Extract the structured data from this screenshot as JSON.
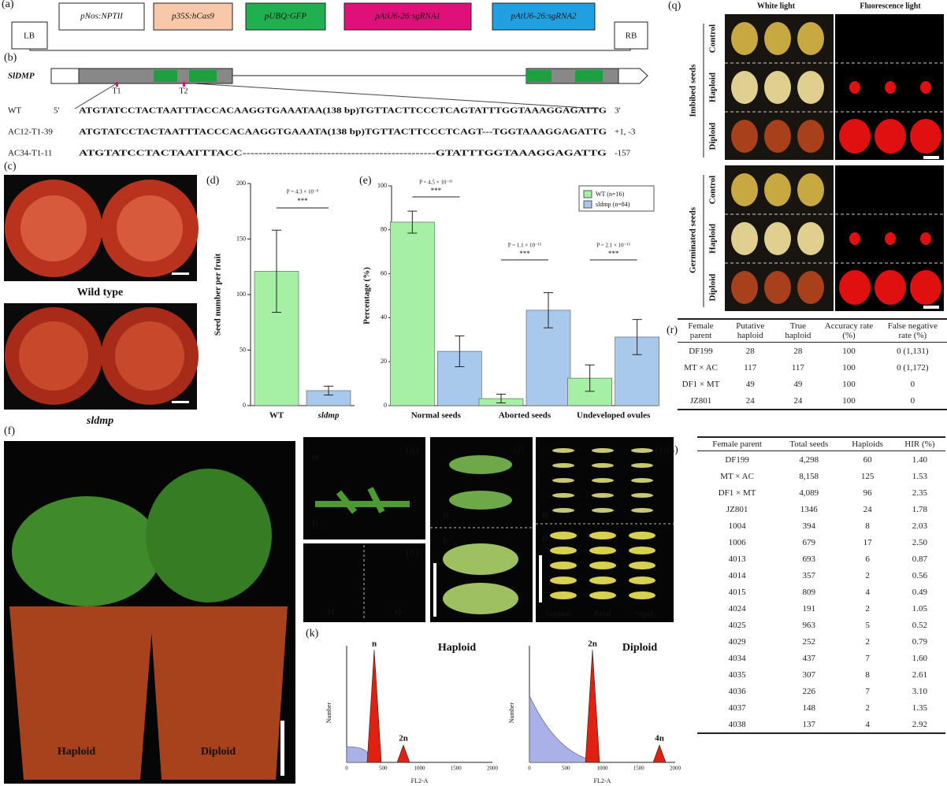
{
  "panel_labels": [
    "(a)",
    "(b)",
    "(c)",
    "(d)",
    "(e)",
    "(f)",
    "(g)",
    "(h)",
    "(i)",
    "(j)",
    "(k)",
    "(q)",
    "(r)",
    "(s)"
  ],
  "construct": {
    "left_border": "LB",
    "right_border": "RB",
    "elements": [
      {
        "text": "pNos:NPTII",
        "color": "#ffffff"
      },
      {
        "text": "p35S:hCas9",
        "color": "#f8c8a8"
      },
      {
        "text": "pUBQ:GFP",
        "color": "#20b050"
      },
      {
        "text": "pAtU6-26:sgRNA1",
        "color": "#e0107a"
      },
      {
        "text": "pAtU6-26:sgRNA2",
        "color": "#20a0e0"
      }
    ]
  },
  "gene": {
    "name": "SlDMP",
    "targets": [
      "T1",
      "T2"
    ]
  },
  "sequences": [
    {
      "name": "WT",
      "prefix": "5'",
      "seq": "ATGTATCCTACTAATTTACCACAAGGTGAAATAA(138 bp)TGTTACTTCCCTCAGTATTTGGTAAAGGAGATTG",
      "suffix": "3'"
    },
    {
      "name": "AC12-T1-39",
      "prefix": "",
      "seq": "ATGTATCCTACTAATTTACCCACAAGGTGAAATA(138 bp)TGTTACTTCCCTCAGT---TGGTAAAGGAGATTG",
      "suffix": "+1, -3"
    },
    {
      "name": "AC34-T1-11",
      "prefix": "",
      "seq": "ATGTATCCTACTAATTTACC------------------------------------------------GTATTTGGTAAAGGAGATTG",
      "suffix": "-157"
    }
  ],
  "photos": {
    "c": [
      "Wild type",
      "sldmp"
    ],
    "f": [
      "Haploid",
      "Diploid"
    ],
    "g": [
      "H",
      "D"
    ],
    "h": [
      "H",
      "D"
    ],
    "i": [
      "H",
      "D"
    ],
    "j": [
      "H",
      "D",
      "Stamen",
      "Petal",
      "Sepal"
    ],
    "q": {
      "columns": [
        "White light",
        "Fluorescence light"
      ],
      "sections": [
        "Imbibed seeds",
        "Germinated seeds"
      ],
      "rows": [
        "Control",
        "Haploid",
        "Diploid"
      ]
    }
  },
  "chart_data": [
    {
      "type": "bar",
      "ylabel": "Seed number per fruit",
      "annotation": "P = 4.3 × 10⁻⁸",
      "significance": "***",
      "categories": [
        "WT",
        "sldmp"
      ],
      "values": [
        121,
        13.5
      ],
      "errors": [
        37,
        4
      ],
      "colors": [
        "#a6f0a6",
        "#a8c8ec"
      ],
      "ylim": [
        0,
        200
      ],
      "yticks": [
        0,
        50,
        100,
        150,
        200
      ]
    },
    {
      "type": "grouped-bar",
      "ylabel": "Percentage (%)",
      "categories": [
        "Normal seeds",
        "Aborted seeds",
        "Undeveloped ovules"
      ],
      "series": [
        {
          "name": "WT (n=16)",
          "color": "#a6f0a6",
          "values": [
            83.5,
            3.2,
            12.5
          ],
          "errors": [
            5,
            2,
            6
          ]
        },
        {
          "name": "sldmp (n=84)",
          "color": "#a8c8ec",
          "values": [
            24.7,
            43.4,
            31.2
          ],
          "errors": [
            7,
            8,
            8
          ]
        }
      ],
      "annotations": [
        {
          "text": "P = 4.5 × 10⁻¹⁶",
          "significance": "***"
        },
        {
          "text": "P = 1.1 × 10⁻¹⁵",
          "significance": "***"
        },
        {
          "text": "P = 2.1 × 10⁻¹⁵",
          "significance": "***"
        }
      ],
      "ylim": [
        0,
        100
      ],
      "yticks": [
        0,
        20,
        40,
        60,
        80,
        100
      ]
    }
  ],
  "flow": [
    {
      "title": "Haploid",
      "peaks": [
        "n",
        "2n"
      ],
      "xlabel": "FL2-A",
      "ylabel": "Number",
      "xticks": [
        "0",
        "500",
        "1000",
        "1500",
        "2000"
      ]
    },
    {
      "title": "Diploid",
      "peaks": [
        "2n",
        "4n"
      ],
      "xlabel": "FL2-A",
      "ylabel": "Number",
      "xticks": [
        "0",
        "500",
        "1000",
        "1500",
        "2000"
      ]
    }
  ],
  "tables": {
    "r": {
      "header": [
        "Female parent",
        "Putative haploid",
        "True haploid",
        "Accuracy rate (%)",
        "False negative rate (%)"
      ],
      "rows": [
        [
          "DF199",
          "28",
          "28",
          "100",
          "0 (1,131)"
        ],
        [
          "MT × AC",
          "117",
          "117",
          "100",
          "0 (1,172)"
        ],
        [
          "DF1 × MT",
          "49",
          "49",
          "100",
          "0"
        ],
        [
          "JZ801",
          "24",
          "24",
          "100",
          "0"
        ]
      ]
    },
    "s": {
      "header": [
        "Female parent",
        "Total seeds",
        "Haploids",
        "HIR (%)"
      ],
      "rows": [
        [
          "DF199",
          "4,298",
          "60",
          "1.40"
        ],
        [
          "MT × AC",
          "8,158",
          "125",
          "1.53"
        ],
        [
          "DF1 × MT",
          "4,089",
          "96",
          "2.35"
        ],
        [
          "JZ801",
          "1346",
          "24",
          "1.78"
        ],
        [
          "1004",
          "394",
          "8",
          "2.03"
        ],
        [
          "1006",
          "679",
          "17",
          "2.50"
        ],
        [
          "4013",
          "693",
          "6",
          "0.87"
        ],
        [
          "4014",
          "357",
          "2",
          "0.56"
        ],
        [
          "4015",
          "809",
          "4",
          "0.49"
        ],
        [
          "4024",
          "191",
          "2",
          "1.05"
        ],
        [
          "4025",
          "963",
          "5",
          "0.52"
        ],
        [
          "4029",
          "252",
          "2",
          "0.79"
        ],
        [
          "4034",
          "437",
          "7",
          "1.60"
        ],
        [
          "4035",
          "307",
          "8",
          "2.61"
        ],
        [
          "4036",
          "226",
          "7",
          "3.10"
        ],
        [
          "4037",
          "148",
          "2",
          "1.35"
        ],
        [
          "4038",
          "137",
          "4",
          "2.92"
        ]
      ]
    }
  }
}
